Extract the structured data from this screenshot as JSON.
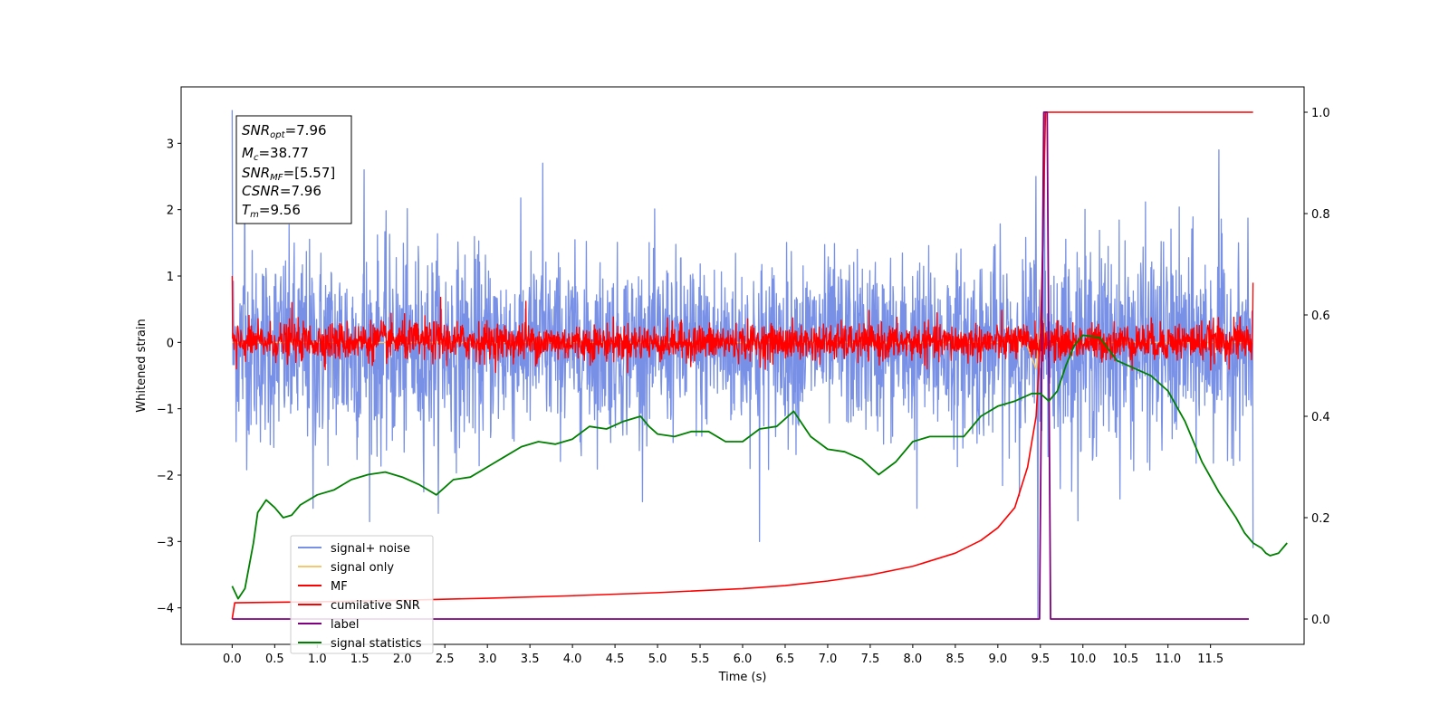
{
  "chart_data": {
    "type": "line",
    "xlabel": "Time (s)",
    "ylabel": "Whitened strain",
    "xlim": [
      -0.6,
      12.6
    ],
    "ylim": [
      -4.55,
      3.85
    ],
    "y2lim": [
      -0.05,
      1.05
    ],
    "x_ticks": [
      "0.0",
      "0.5",
      "1.0",
      "1.5",
      "2.0",
      "2.5",
      "3.0",
      "3.5",
      "4.0",
      "4.5",
      "5.0",
      "5.5",
      "6.0",
      "6.5",
      "7.0",
      "7.5",
      "8.0",
      "8.5",
      "9.0",
      "9.5",
      "10.0",
      "10.5",
      "11.0",
      "11.5"
    ],
    "y_ticks": [
      "3",
      "2",
      "1",
      "0",
      "−1",
      "−2",
      "−3",
      "−4"
    ],
    "y2_ticks": [
      "1.0",
      "0.8",
      "0.6",
      "0.4",
      "0.2",
      "0.0"
    ],
    "grid": false,
    "legend_position": "lower-left",
    "annotation": {
      "snr_opt": {
        "base": "SNR",
        "sub": "opt",
        "value": "=7.96"
      },
      "mc": {
        "base": "M",
        "sub": "c",
        "value": "=38.77"
      },
      "snr_mf": {
        "base": "SNR",
        "sub": "MF",
        "value": "=[5.57]"
      },
      "csnr": {
        "base": "CSNR",
        "sub": "",
        "value": "=7.96"
      },
      "tm": {
        "base": "T",
        "sub": "m",
        "value": "=9.56"
      }
    },
    "series": [
      {
        "name": "signal+ noise",
        "axis": "left",
        "color": "#7890e6",
        "style": "noise band",
        "t_range": [
          0.0,
          12.0
        ],
        "upper_envelope": [
          [
            0.0,
            1.5
          ],
          [
            1.0,
            1.6
          ],
          [
            2.0,
            1.6
          ],
          [
            3.0,
            1.5
          ],
          [
            4.0,
            1.4
          ],
          [
            5.0,
            1.4
          ],
          [
            6.0,
            1.4
          ],
          [
            7.0,
            1.4
          ],
          [
            8.0,
            1.4
          ],
          [
            9.0,
            1.5
          ],
          [
            10.0,
            1.7
          ],
          [
            11.0,
            1.7
          ],
          [
            12.0,
            1.4
          ]
        ],
        "lower_envelope": [
          [
            0.0,
            -1.6
          ],
          [
            1.0,
            -1.8
          ],
          [
            2.0,
            -1.8
          ],
          [
            3.0,
            -1.6
          ],
          [
            4.0,
            -1.5
          ],
          [
            5.0,
            -1.5
          ],
          [
            6.0,
            -1.5
          ],
          [
            7.0,
            -1.4
          ],
          [
            8.0,
            -1.6
          ],
          [
            9.0,
            -1.6
          ],
          [
            10.0,
            -1.8
          ],
          [
            11.0,
            -1.8
          ],
          [
            12.0,
            -1.5
          ]
        ],
        "notable_peaks": [
          [
            0.0,
            3.5
          ],
          [
            0.15,
            2.7
          ],
          [
            1.55,
            2.6
          ],
          [
            3.65,
            2.7
          ],
          [
            9.45,
            2.5
          ],
          [
            9.55,
            2.8
          ],
          [
            11.6,
            2.9
          ],
          [
            0.95,
            -2.5
          ],
          [
            6.2,
            -3.0
          ],
          [
            8.05,
            -2.5
          ],
          [
            9.47,
            -4.15
          ],
          [
            12.0,
            -3.1
          ]
        ]
      },
      {
        "name": "signal only",
        "axis": "left",
        "color": "#f5c870",
        "points": [
          [
            0.0,
            0.0
          ],
          [
            9.0,
            0.0
          ],
          [
            9.3,
            0.1
          ],
          [
            9.45,
            -0.4
          ],
          [
            9.52,
            0.5
          ],
          [
            9.56,
            0.0
          ],
          [
            12.0,
            0.0
          ]
        ]
      },
      {
        "name": "MF",
        "axis": "left",
        "color": "#ff0000",
        "style": "noise band",
        "t_range": [
          0.0,
          12.0
        ],
        "upper_envelope": [
          [
            0.0,
            0.3
          ],
          [
            2.0,
            0.35
          ],
          [
            4.0,
            0.3
          ],
          [
            6.0,
            0.3
          ],
          [
            8.0,
            0.3
          ],
          [
            10.0,
            0.3
          ],
          [
            12.0,
            0.35
          ]
        ],
        "lower_envelope": [
          [
            0.0,
            -0.3
          ],
          [
            12.0,
            -0.3
          ]
        ],
        "notable_peaks": [
          [
            0.0,
            1.0
          ],
          [
            0.05,
            -0.4
          ],
          [
            0.7,
            0.6
          ],
          [
            2.45,
            0.68
          ],
          [
            3.45,
            0.62
          ],
          [
            12.0,
            0.9
          ]
        ]
      },
      {
        "name": "cumilative SNR",
        "axis": "right",
        "color": "#ff0000",
        "points": [
          [
            0.0,
            0.0
          ],
          [
            0.03,
            0.032
          ],
          [
            1.0,
            0.034
          ],
          [
            2.0,
            0.037
          ],
          [
            3.0,
            0.041
          ],
          [
            4.0,
            0.046
          ],
          [
            5.0,
            0.052
          ],
          [
            6.0,
            0.06
          ],
          [
            6.5,
            0.066
          ],
          [
            7.0,
            0.075
          ],
          [
            7.5,
            0.087
          ],
          [
            8.0,
            0.104
          ],
          [
            8.5,
            0.13
          ],
          [
            8.8,
            0.155
          ],
          [
            9.0,
            0.18
          ],
          [
            9.2,
            0.22
          ],
          [
            9.35,
            0.3
          ],
          [
            9.45,
            0.4
          ],
          [
            9.5,
            0.55
          ],
          [
            9.53,
            0.75
          ],
          [
            9.56,
            1.0
          ],
          [
            12.0,
            1.0
          ]
        ]
      },
      {
        "name": "label",
        "axis": "right",
        "color": "#800080",
        "points": [
          [
            0.0,
            0.0
          ],
          [
            9.49,
            0.0
          ],
          [
            9.54,
            1.0
          ],
          [
            9.58,
            1.0
          ],
          [
            9.62,
            0.0
          ],
          [
            11.95,
            0.0
          ]
        ]
      },
      {
        "name": "signal statistics",
        "axis": "right",
        "color": "#008000",
        "points": [
          [
            0.0,
            0.065
          ],
          [
            0.07,
            0.04
          ],
          [
            0.15,
            0.06
          ],
          [
            0.25,
            0.15
          ],
          [
            0.3,
            0.21
          ],
          [
            0.4,
            0.235
          ],
          [
            0.5,
            0.22
          ],
          [
            0.6,
            0.2
          ],
          [
            0.7,
            0.205
          ],
          [
            0.8,
            0.225
          ],
          [
            1.0,
            0.245
          ],
          [
            1.2,
            0.255
          ],
          [
            1.4,
            0.275
          ],
          [
            1.6,
            0.285
          ],
          [
            1.8,
            0.29
          ],
          [
            2.0,
            0.28
          ],
          [
            2.2,
            0.265
          ],
          [
            2.4,
            0.245
          ],
          [
            2.5,
            0.26
          ],
          [
            2.6,
            0.275
          ],
          [
            2.8,
            0.28
          ],
          [
            3.0,
            0.3
          ],
          [
            3.2,
            0.32
          ],
          [
            3.4,
            0.34
          ],
          [
            3.6,
            0.35
          ],
          [
            3.8,
            0.345
          ],
          [
            4.0,
            0.355
          ],
          [
            4.2,
            0.38
          ],
          [
            4.4,
            0.375
          ],
          [
            4.6,
            0.39
          ],
          [
            4.8,
            0.4
          ],
          [
            4.9,
            0.38
          ],
          [
            5.0,
            0.365
          ],
          [
            5.2,
            0.36
          ],
          [
            5.4,
            0.37
          ],
          [
            5.6,
            0.37
          ],
          [
            5.8,
            0.35
          ],
          [
            6.0,
            0.35
          ],
          [
            6.2,
            0.375
          ],
          [
            6.4,
            0.38
          ],
          [
            6.6,
            0.41
          ],
          [
            6.8,
            0.36
          ],
          [
            7.0,
            0.335
          ],
          [
            7.2,
            0.33
          ],
          [
            7.4,
            0.315
          ],
          [
            7.6,
            0.285
          ],
          [
            7.8,
            0.31
          ],
          [
            8.0,
            0.35
          ],
          [
            8.2,
            0.36
          ],
          [
            8.4,
            0.36
          ],
          [
            8.6,
            0.36
          ],
          [
            8.8,
            0.4
          ],
          [
            9.0,
            0.42
          ],
          [
            9.2,
            0.43
          ],
          [
            9.4,
            0.445
          ],
          [
            9.5,
            0.445
          ],
          [
            9.6,
            0.43
          ],
          [
            9.7,
            0.45
          ],
          [
            9.8,
            0.5
          ],
          [
            9.9,
            0.54
          ],
          [
            10.0,
            0.56
          ],
          [
            10.2,
            0.555
          ],
          [
            10.4,
            0.51
          ],
          [
            10.6,
            0.495
          ],
          [
            10.8,
            0.48
          ],
          [
            11.0,
            0.45
          ],
          [
            11.2,
            0.39
          ],
          [
            11.4,
            0.31
          ],
          [
            11.6,
            0.25
          ],
          [
            11.8,
            0.2
          ],
          [
            11.9,
            0.17
          ],
          [
            12.0,
            0.15
          ],
          [
            12.1,
            0.14
          ],
          [
            12.15,
            0.13
          ],
          [
            12.2,
            0.125
          ],
          [
            12.3,
            0.13
          ],
          [
            12.4,
            0.15
          ]
        ]
      }
    ]
  }
}
